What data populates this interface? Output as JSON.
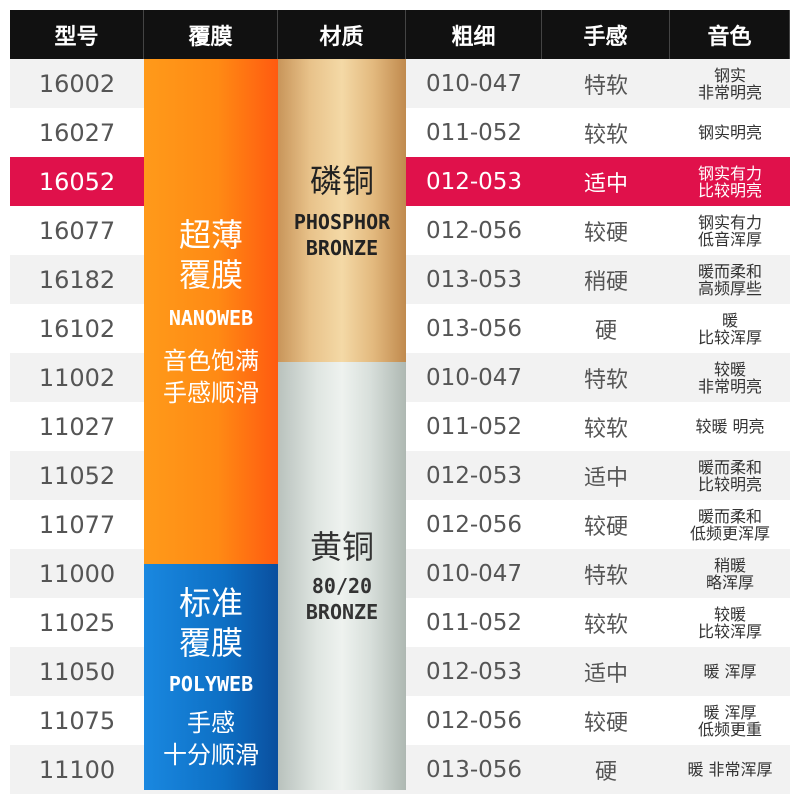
{
  "headers": {
    "model": "型号",
    "coating": "覆膜",
    "material": "材质",
    "gauge": "粗细",
    "feel": "手感",
    "tone": "音色"
  },
  "coatings": {
    "nanoweb": {
      "cn": [
        "超薄",
        "覆膜"
      ],
      "en": "NANOWEB",
      "desc": [
        "音色饱满",
        "手感顺滑"
      ],
      "color": "#ff8a14"
    },
    "polyweb": {
      "cn": [
        "标准",
        "覆膜"
      ],
      "en": "POLYWEB",
      "desc": [
        "手感",
        "十分顺滑"
      ],
      "color": "#0d6fc4"
    }
  },
  "materials": {
    "phosphor": {
      "cn": "磷铜",
      "en": [
        "PHOSPHOR",
        "BRONZE"
      ]
    },
    "brass": {
      "cn": "黄铜",
      "en": [
        "80/20",
        "BRONZE"
      ]
    }
  },
  "highlight_color": "#e0114b",
  "rows": [
    {
      "model": "16002",
      "gauge": "010-047",
      "feel": "特软",
      "tone": [
        "钢实",
        "非常明亮"
      ],
      "highlight": false
    },
    {
      "model": "16027",
      "gauge": "011-052",
      "feel": "较软",
      "tone": [
        "钢实明亮"
      ],
      "highlight": false
    },
    {
      "model": "16052",
      "gauge": "012-053",
      "feel": "适中",
      "tone": [
        "钢实有力",
        "比较明亮"
      ],
      "highlight": true
    },
    {
      "model": "16077",
      "gauge": "012-056",
      "feel": "较硬",
      "tone": [
        "钢实有力",
        "低音浑厚"
      ],
      "highlight": false
    },
    {
      "model": "16182",
      "gauge": "013-053",
      "feel": "稍硬",
      "tone": [
        "暖而柔和",
        "高频厚些"
      ],
      "highlight": false
    },
    {
      "model": "16102",
      "gauge": "013-056",
      "feel": "硬",
      "tone": [
        "暖",
        "比较浑厚"
      ],
      "highlight": false
    },
    {
      "model": "11002",
      "gauge": "010-047",
      "feel": "特软",
      "tone": [
        "较暖",
        "非常明亮"
      ],
      "highlight": false
    },
    {
      "model": "11027",
      "gauge": "011-052",
      "feel": "较软",
      "tone": [
        "较暖 明亮"
      ],
      "highlight": false
    },
    {
      "model": "11052",
      "gauge": "012-053",
      "feel": "适中",
      "tone": [
        "暖而柔和",
        "比较明亮"
      ],
      "highlight": false
    },
    {
      "model": "11077",
      "gauge": "012-056",
      "feel": "较硬",
      "tone": [
        "暖而柔和",
        "低频更浑厚"
      ],
      "highlight": false
    },
    {
      "model": "11000",
      "gauge": "010-047",
      "feel": "特软",
      "tone": [
        "稍暖",
        "略浑厚"
      ],
      "highlight": false
    },
    {
      "model": "11025",
      "gauge": "011-052",
      "feel": "较软",
      "tone": [
        "较暖",
        "比较浑厚"
      ],
      "highlight": false
    },
    {
      "model": "11050",
      "gauge": "012-053",
      "feel": "适中",
      "tone": [
        "暖 浑厚"
      ],
      "highlight": false
    },
    {
      "model": "11075",
      "gauge": "012-056",
      "feel": "较硬",
      "tone": [
        "暖 浑厚",
        "低频更重"
      ],
      "highlight": false
    },
    {
      "model": "11100",
      "gauge": "013-056",
      "feel": "硬",
      "tone": [
        "暖 非常浑厚"
      ],
      "highlight": false
    }
  ]
}
